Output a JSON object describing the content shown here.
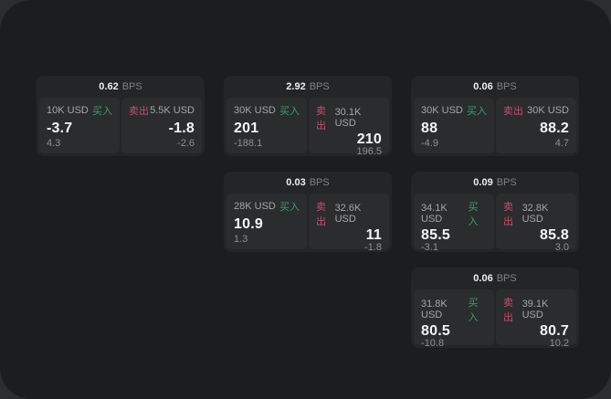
{
  "labels": {
    "bps": "BPS",
    "buy": "买入",
    "sell": "卖出"
  },
  "colors": {
    "buy_accent": "#35a364",
    "sell_accent": "#cb4e67",
    "panel_bg": "#1c1d1e",
    "card_bg": "#232527",
    "pane_bg": "#2a2c2e"
  },
  "cards": [
    {
      "bps": "0.62",
      "buy": {
        "size": "10K USD",
        "value": "-3.7",
        "sub": "4.3"
      },
      "sell": {
        "size": "5.5K USD",
        "value": "-1.8",
        "sub": "-2.6"
      }
    },
    {
      "bps": "2.92",
      "buy": {
        "size": "30K USD",
        "value": "201",
        "sub": "-188.1"
      },
      "sell": {
        "size": "30.1K USD",
        "value": "210",
        "sub": "196.5"
      }
    },
    {
      "bps": "0.06",
      "buy": {
        "size": "30K USD",
        "value": "88",
        "sub": "-4.9"
      },
      "sell": {
        "size": "30K USD",
        "value": "88.2",
        "sub": "4.7"
      }
    },
    {
      "bps": "0.03",
      "buy": {
        "size": "28K USD",
        "value": "10.9",
        "sub": "1.3"
      },
      "sell": {
        "size": "32.6K USD",
        "value": "11",
        "sub": "-1.8"
      }
    },
    {
      "bps": "0.09",
      "buy": {
        "size": "34.1K USD",
        "value": "85.5",
        "sub": "-3.1"
      },
      "sell": {
        "size": "32.8K USD",
        "value": "85.8",
        "sub": "3.0"
      }
    },
    {
      "bps": "0.06",
      "buy": {
        "size": "31.8K USD",
        "value": "80.5",
        "sub": "-10.8"
      },
      "sell": {
        "size": "39.1K USD",
        "value": "80.7",
        "sub": "10.2"
      }
    }
  ]
}
